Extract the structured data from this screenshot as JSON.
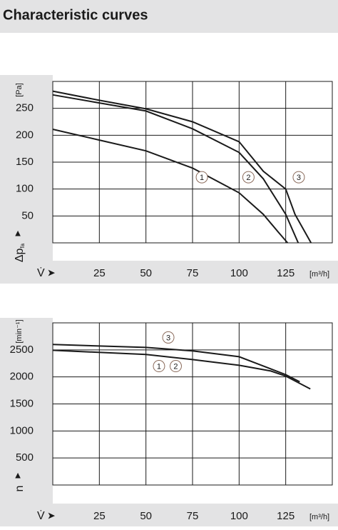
{
  "header": {
    "title": "Characteristic curves"
  },
  "chart_data": [
    {
      "type": "line",
      "x_label": "V̇",
      "x_unit": "[m³/h]",
      "y_label": "Δp",
      "y_label_sub": "fa",
      "y_unit": "[Pa]",
      "xlim": [
        0,
        150
      ],
      "xticks": [
        25,
        50,
        75,
        100,
        125
      ],
      "ylim": [
        0,
        300
      ],
      "yticks": [
        50,
        100,
        150,
        200,
        250
      ],
      "grid": true,
      "series": [
        {
          "color": "#1a1a1a",
          "x": [
            0,
            25,
            50,
            75,
            100,
            113,
            125,
            130,
            138.6
          ],
          "y": [
            282,
            265,
            249,
            225,
            188,
            133,
            100,
            53,
            0
          ]
        },
        {
          "color": "#1a1a1a",
          "x": [
            0,
            25,
            50,
            75,
            100,
            113,
            125,
            131.7
          ],
          "y": [
            275,
            260,
            245,
            212,
            168,
            119,
            53,
            0
          ]
        },
        {
          "color": "#1a1a1a",
          "x": [
            0,
            25,
            50,
            75,
            100,
            113,
            121,
            126
          ],
          "y": [
            211,
            191,
            171,
            139,
            93,
            53,
            20,
            0
          ]
        }
      ],
      "annotations": [
        {
          "text": "1",
          "x": 80,
          "y": 122
        },
        {
          "text": "2",
          "x": 105,
          "y": 122
        },
        {
          "text": "3",
          "x": 132,
          "y": 122
        }
      ]
    },
    {
      "type": "line",
      "x_label": "V̇",
      "x_unit": "[m³/h]",
      "y_label": "n",
      "y_unit": "[min⁻¹]",
      "xlim": [
        0,
        150
      ],
      "xticks": [
        25,
        50,
        75,
        100,
        125
      ],
      "ylim": [
        0,
        3000
      ],
      "yticks": [
        500,
        1000,
        1500,
        2000,
        2500
      ],
      "grid": true,
      "series": [
        {
          "color": "#1a1a1a",
          "x": [
            0,
            50,
            75,
            100,
            125,
            132.5
          ],
          "y": [
            2600,
            2546,
            2480,
            2374,
            2042,
            1910
          ]
        },
        {
          "color": "#1a1a1a",
          "x": [
            0,
            50,
            75,
            100,
            117,
            125,
            138.2
          ],
          "y": [
            2493,
            2414,
            2321,
            2215,
            2109,
            2016,
            1777
          ]
        }
      ],
      "annotations": [
        {
          "text": "3",
          "x": 62,
          "y": 2730
        },
        {
          "text": "1",
          "x": 57,
          "y": 2200
        },
        {
          "text": "2",
          "x": 66,
          "y": 2200
        }
      ]
    }
  ]
}
